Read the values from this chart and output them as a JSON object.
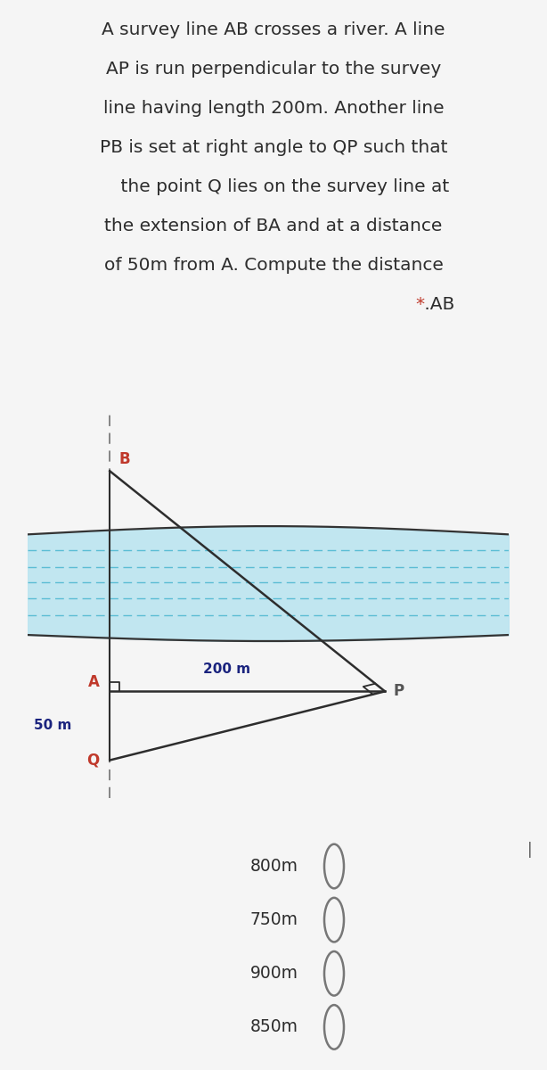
{
  "question_lines": [
    "A survey line AB crosses a river. A line",
    "AP is run perpendicular to the survey",
    "line having length 200m. Another line",
    "PB is set at right angle to QP such that",
    "    the point Q lies on the survey line at",
    "the extension of BA and at a distance",
    "of 50m from A. Compute the distance"
  ],
  "question_suffix_star": "*",
  "question_suffix_text": " .AB",
  "bg_color": "#f5f5f5",
  "river_fill": "#b8e4f0",
  "river_line_color": "#333333",
  "river_dash_color": "#5bbdd4",
  "label_color": "#c0392b",
  "text_color": "#2d2d2d",
  "dim_color": "#1a237e",
  "options": [
    "800m",
    "750m",
    "900m",
    "850m"
  ],
  "option_circle_color": "#777777",
  "points": {
    "B": [
      0,
      3.2
    ],
    "A": [
      0,
      0
    ],
    "P": [
      4.0,
      0
    ],
    "Q": [
      0,
      -1.0
    ]
  },
  "AP_label": "200 m",
  "QA_label": "50 m",
  "dashes_y": [
    2.05,
    1.8,
    1.58,
    1.35,
    1.1
  ],
  "font_size_question": 14.5,
  "font_size_labels": 11,
  "font_size_options": 13.5
}
